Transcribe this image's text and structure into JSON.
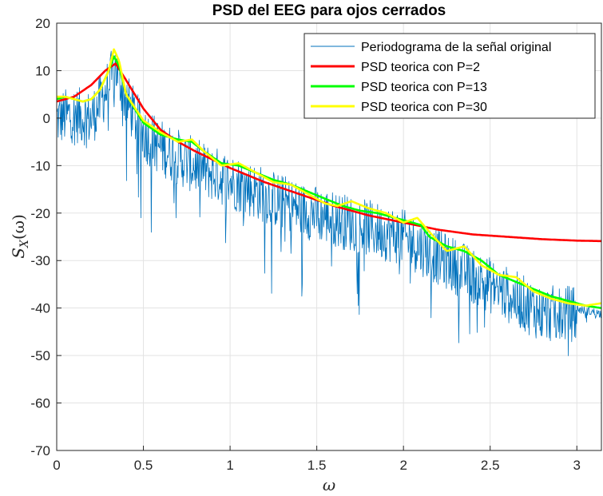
{
  "chart_data": {
    "type": "line",
    "title": "PSD del EEG para ojos cerrados",
    "xlabel": "ω",
    "ylabel_main": "S",
    "ylabel_sub": "X",
    "ylabel_arg": "(ω)",
    "xlim": [
      0,
      3.1416
    ],
    "ylim": [
      -70,
      20
    ],
    "xticks": [
      0,
      0.5,
      1,
      1.5,
      2,
      2.5,
      3
    ],
    "xtick_labels": [
      "0",
      "0.5",
      "1",
      "1.5",
      "2",
      "2.5",
      "3"
    ],
    "yticks": [
      20,
      10,
      0,
      -10,
      -20,
      -30,
      -40,
      -50,
      -60,
      -70
    ],
    "ytick_labels": [
      "20",
      "10",
      "0",
      "-10",
      "-20",
      "-30",
      "-40",
      "-50",
      "-60",
      "-70"
    ],
    "grid": true,
    "legend_position": "top-right",
    "colors": {
      "periodogram": "#0072BD",
      "p2": "#FF0000",
      "p13": "#00FF00",
      "p30": "#FFFF00"
    },
    "series": [
      {
        "name": "Periodograma de la señal original",
        "style": "noisy",
        "x": [
          0,
          0.1,
          0.2,
          0.3,
          0.34,
          0.4,
          0.5,
          0.6,
          0.8,
          1.0,
          1.2,
          1.4,
          1.6,
          1.8,
          2.0,
          2.2,
          2.4,
          2.6,
          2.8,
          3.0,
          3.14
        ],
        "values": [
          1,
          2,
          1,
          8,
          12,
          5,
          -2,
          -5,
          -9,
          -12,
          -15,
          -18,
          -20,
          -22,
          -24,
          -28,
          -32,
          -36,
          -40,
          -40,
          -41
        ]
      },
      {
        "name": "PSD teorica con P=2",
        "x": [
          0,
          0.1,
          0.2,
          0.28,
          0.34,
          0.4,
          0.5,
          0.6,
          0.7,
          0.8,
          1.0,
          1.2,
          1.4,
          1.6,
          1.8,
          2.0,
          2.2,
          2.4,
          2.6,
          2.8,
          3.0,
          3.14
        ],
        "values": [
          3.5,
          4.5,
          7,
          10,
          11.5,
          8,
          2,
          -2.5,
          -5,
          -7,
          -10.5,
          -13.5,
          -16,
          -18.5,
          -20.5,
          -22,
          -23.5,
          -24.5,
          -25,
          -25.5,
          -25.8,
          -25.9
        ]
      },
      {
        "name": "PSD teorica con P=13",
        "x": [
          0,
          0.05,
          0.1,
          0.15,
          0.2,
          0.25,
          0.3,
          0.33,
          0.36,
          0.4,
          0.5,
          0.6,
          0.7,
          0.78,
          0.85,
          0.95,
          1.05,
          1.15,
          1.25,
          1.35,
          1.45,
          1.55,
          1.65,
          1.75,
          1.85,
          1.95,
          2.05,
          2.1,
          2.15,
          2.25,
          2.35,
          2.45,
          2.55,
          2.65,
          2.75,
          2.85,
          2.95,
          3.05,
          3.14
        ],
        "values": [
          4,
          4.5,
          4,
          3.5,
          4,
          6,
          10,
          13,
          11,
          5,
          -1,
          -3.5,
          -4.5,
          -5,
          -7,
          -9.5,
          -10,
          -11.5,
          -13,
          -14,
          -15.5,
          -17,
          -18.5,
          -19.5,
          -20,
          -21,
          -22,
          -22.5,
          -25,
          -27,
          -28,
          -30,
          -33,
          -34.5,
          -36,
          -37.5,
          -38.5,
          -39.5,
          -40
        ]
      },
      {
        "name": "PSD teorica con P=30",
        "x": [
          0,
          0.05,
          0.1,
          0.15,
          0.2,
          0.25,
          0.3,
          0.33,
          0.36,
          0.4,
          0.5,
          0.6,
          0.7,
          0.78,
          0.85,
          0.95,
          1.05,
          1.15,
          1.25,
          1.35,
          1.45,
          1.55,
          1.62,
          1.7,
          1.8,
          1.9,
          2.0,
          2.08,
          2.15,
          2.25,
          2.35,
          2.45,
          2.55,
          2.65,
          2.75,
          2.85,
          2.95,
          3.05,
          3.14
        ],
        "values": [
          4.5,
          4.5,
          4,
          3.5,
          4,
          6,
          10,
          14.5,
          12,
          5,
          -0.5,
          -3,
          -5,
          -4.5,
          -7,
          -10,
          -9.5,
          -11.5,
          -13.5,
          -14,
          -16,
          -18,
          -18.5,
          -17.5,
          -19,
          -20,
          -22,
          -21,
          -24,
          -28,
          -27,
          -31,
          -33,
          -33.5,
          -36.5,
          -38,
          -39,
          -39.5,
          -39
        ]
      }
    ]
  }
}
